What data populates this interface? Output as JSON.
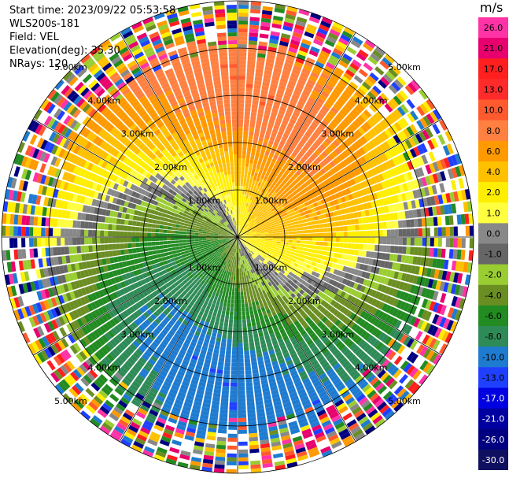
{
  "header": {
    "start_time": "Start time: 2023/09/22 05:53:58",
    "instrument": "WLS200s-181",
    "field": "Field: VEL",
    "elevation": "Elevation(deg): 35.30",
    "nrays": "NRays: 120"
  },
  "colorbar": {
    "unit": "m/s",
    "ticks": [
      "26.0",
      "21.0",
      "17.0",
      "13.0",
      "10.0",
      "8.0",
      "6.0",
      "4.0",
      "2.0",
      "1.0",
      "0.0",
      "-1.0",
      "-2.0",
      "-4.0",
      "-6.0",
      "-8.0",
      "-10.0",
      "-13.0",
      "-17.0",
      "-21.0",
      "-26.0",
      "-30.0"
    ],
    "colors": [
      "#ff33a6",
      "#e8006e",
      "#ff1f1f",
      "#ff2b2b",
      "#ff5a2e",
      "#ff8040",
      "#ff9900",
      "#ffc000",
      "#ffee00",
      "#ffff40",
      "#888888",
      "#666666",
      "#9acd32",
      "#6b8e23",
      "#228b22",
      "#2e8b57",
      "#1e7bd0",
      "#2040ff",
      "#0000e0",
      "#0000a0",
      "#000080",
      "#101060"
    ]
  },
  "chart_data": {
    "type": "heatmap",
    "projection": "polar-ppi",
    "field": "VEL",
    "units": "m/s",
    "nrays": 120,
    "max_range_km": 5.0,
    "range_rings_km": [
      1.0,
      2.0,
      3.0,
      4.0,
      5.0
    ],
    "range_ring_labels": [
      "1.00km",
      "2.00km",
      "3.00km",
      "4.00km",
      "5.00km"
    ],
    "spoke_angles_deg": [
      0,
      30,
      60,
      90,
      120,
      150,
      180,
      210,
      240,
      270,
      300,
      330
    ],
    "color_scale_ms": [
      26.0,
      21.0,
      17.0,
      13.0,
      10.0,
      8.0,
      6.0,
      4.0,
      2.0,
      1.0,
      0.0,
      -1.0,
      -2.0,
      -4.0,
      -6.0,
      -8.0,
      -10.0,
      -13.0,
      -17.0,
      -21.0,
      -26.0,
      -30.0
    ],
    "pattern": {
      "approaching_sector": "west / south-west (green, -4 to -8 m/s)",
      "receding_sector": "east / north-east (orange-red, 6 to 10 m/s)",
      "zero_isodop": "curved grey band",
      "noise_beyond_km": 3.8
    }
  }
}
